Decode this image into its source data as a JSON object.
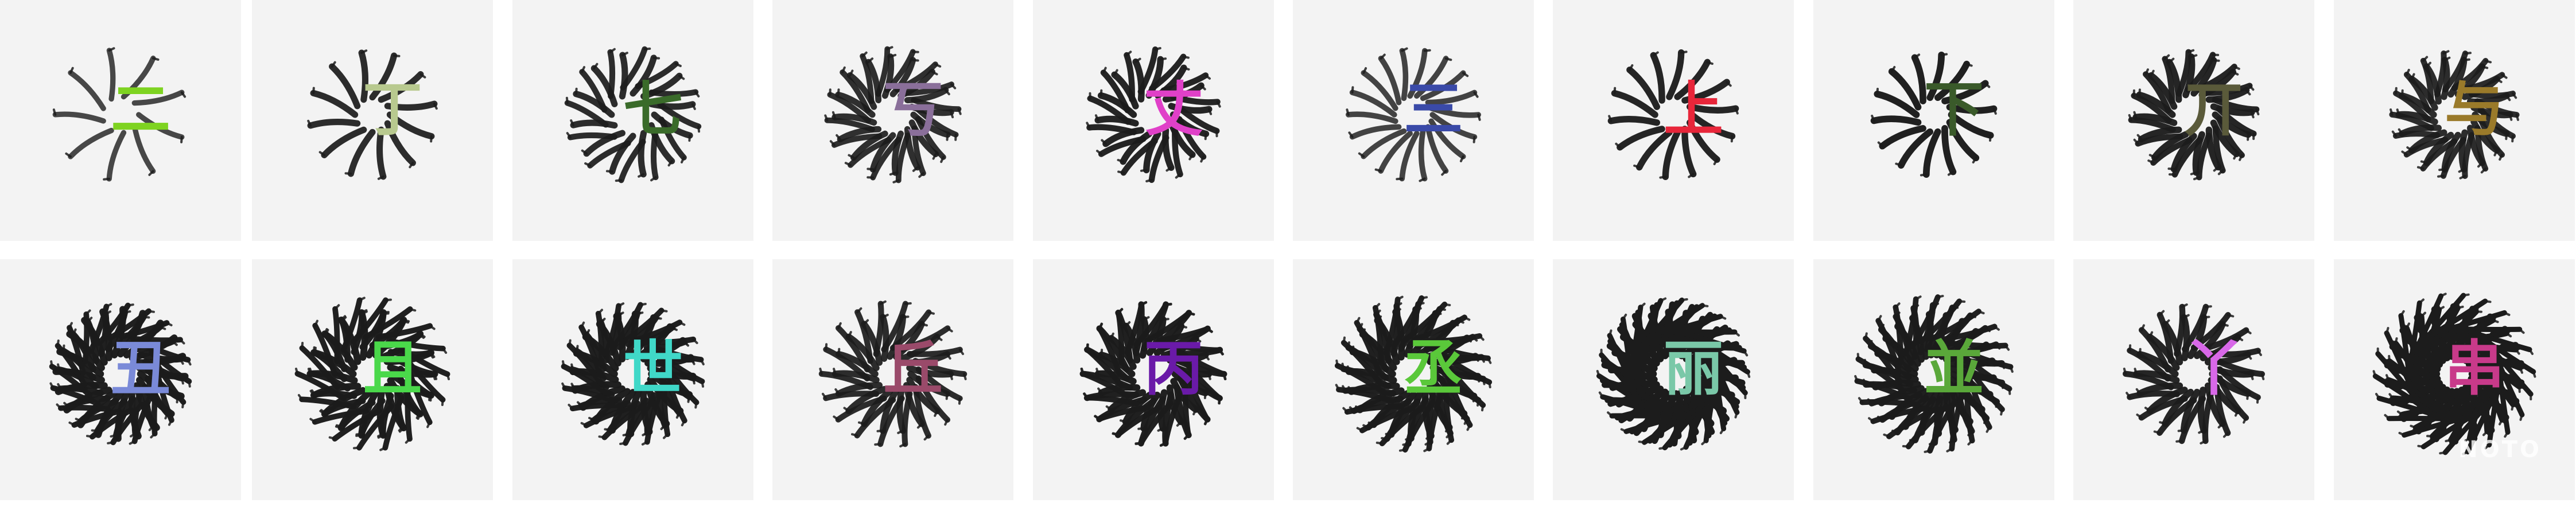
{
  "tiles": [
    {
      "char": "二",
      "color": "#7ed321",
      "spokes": 9,
      "layers": 1,
      "ink": 0.55
    },
    {
      "char": "丁",
      "color": "#b8c98f",
      "spokes": 12,
      "layers": 1,
      "ink": 0.85
    },
    {
      "char": "七",
      "color": "#3a6b2a",
      "spokes": 12,
      "layers": 2,
      "ink": 0.85
    },
    {
      "char": "丂",
      "color": "#8a6f9a",
      "spokes": 16,
      "layers": 2,
      "ink": 0.8
    },
    {
      "char": "丈",
      "color": "#e040c8",
      "spokes": 14,
      "layers": 2,
      "ink": 0.9
    },
    {
      "char": "三",
      "color": "#3a4aa8",
      "spokes": 18,
      "layers": 1,
      "ink": 0.6
    },
    {
      "char": "上",
      "color": "#e8263a",
      "spokes": 14,
      "layers": 1,
      "ink": 0.9
    },
    {
      "char": "下",
      "color": "#3a5a2a",
      "spokes": 14,
      "layers": 1,
      "ink": 0.95
    },
    {
      "char": "丌",
      "color": "#5a5a3a",
      "spokes": 16,
      "layers": 2,
      "ink": 0.9
    },
    {
      "char": "与",
      "color": "#9a7a2a",
      "spokes": 18,
      "layers": 2,
      "ink": 0.85
    },
    {
      "char": "丑",
      "color": "#7a8ad8",
      "spokes": 20,
      "layers": 3,
      "ink": 0.95
    },
    {
      "char": "且",
      "color": "#4ad84a",
      "spokes": 18,
      "layers": 3,
      "ink": 0.95
    },
    {
      "char": "世",
      "color": "#40d8c8",
      "spokes": 20,
      "layers": 3,
      "ink": 0.95
    },
    {
      "char": "丘",
      "color": "#9a4a6a",
      "spokes": 18,
      "layers": 2,
      "ink": 0.85
    },
    {
      "char": "丙",
      "color": "#6a1aa8",
      "spokes": 18,
      "layers": 3,
      "ink": 0.95
    },
    {
      "char": "丞",
      "color": "#5ac83a",
      "spokes": 20,
      "layers": 3,
      "ink": 0.95
    },
    {
      "char": "丽",
      "color": "#7ac8a8",
      "spokes": 22,
      "layers": 4,
      "ink": 1.0
    },
    {
      "char": "並",
      "color": "#5aa83a",
      "spokes": 22,
      "layers": 3,
      "ink": 0.95
    },
    {
      "char": "丫",
      "color": "#d868e8",
      "spokes": 18,
      "layers": 2,
      "ink": 0.9
    },
    {
      "char": "串",
      "color": "#c83a8a",
      "spokes": 22,
      "layers": 4,
      "ink": 1.0
    }
  ],
  "watermark": "NOTO"
}
